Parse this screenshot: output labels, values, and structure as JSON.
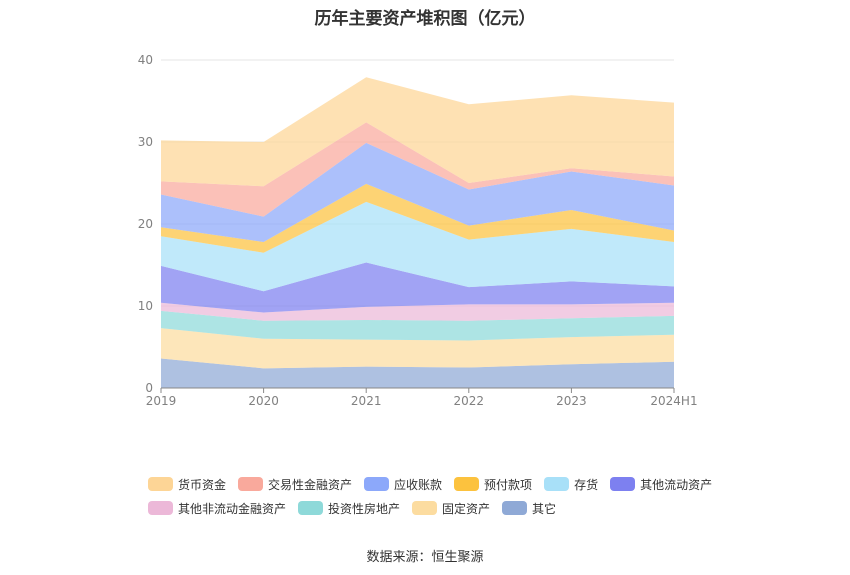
{
  "chart_data": {
    "type": "area",
    "stacked": true,
    "title": "历年主要资产堆积图（亿元）",
    "categories": [
      "2019",
      "2020",
      "2021",
      "2022",
      "2023",
      "2024H1"
    ],
    "ylim": [
      0,
      40
    ],
    "yticks": [
      "0",
      "10",
      "20",
      "30",
      "40"
    ],
    "grid": true,
    "legend_position": "bottom",
    "series": [
      {
        "name": "其它",
        "color": "#8fa9d6",
        "values": [
          3.6,
          2.4,
          2.6,
          2.5,
          2.9,
          3.2
        ]
      },
      {
        "name": "固定资产",
        "color": "#fcdca0",
        "values": [
          3.7,
          3.6,
          3.3,
          3.3,
          3.3,
          3.3
        ]
      },
      {
        "name": "投资性房地产",
        "color": "#8ed9d9",
        "values": [
          2.1,
          2.2,
          2.4,
          2.4,
          2.3,
          2.3
        ]
      },
      {
        "name": "其他非流动金融资产",
        "color": "#ecb8d8",
        "values": [
          1.0,
          1.0,
          1.6,
          2.0,
          1.7,
          1.6
        ]
      },
      {
        "name": "其他流动资产",
        "color": "#7d80f0",
        "values": [
          4.5,
          2.6,
          5.4,
          2.1,
          2.8,
          2.0
        ]
      },
      {
        "name": "存货",
        "color": "#a8e0f8",
        "values": [
          3.6,
          4.7,
          7.4,
          5.8,
          6.4,
          5.4
        ]
      },
      {
        "name": "预付款项",
        "color": "#fcc23e",
        "values": [
          1.1,
          1.3,
          2.2,
          1.7,
          2.3,
          1.4
        ]
      },
      {
        "name": "应收账款",
        "color": "#8ca8fa",
        "values": [
          4.0,
          3.1,
          5.0,
          4.4,
          4.7,
          5.5
        ]
      },
      {
        "name": "交易性金融资产",
        "color": "#f9a99c",
        "values": [
          1.6,
          3.7,
          2.5,
          0.8,
          0.4,
          1.1
        ]
      },
      {
        "name": "货币资金",
        "color": "#fdd596",
        "values": [
          5.0,
          5.4,
          5.5,
          9.6,
          8.9,
          9.0
        ]
      }
    ],
    "legend_order": [
      "货币资金",
      "交易性金融资产",
      "应收账款",
      "预付款项",
      "存货",
      "其他流动资产",
      "其他非流动金融资产",
      "投资性房地产",
      "固定资产",
      "其它"
    ],
    "source": "数据来源：恒生聚源"
  }
}
